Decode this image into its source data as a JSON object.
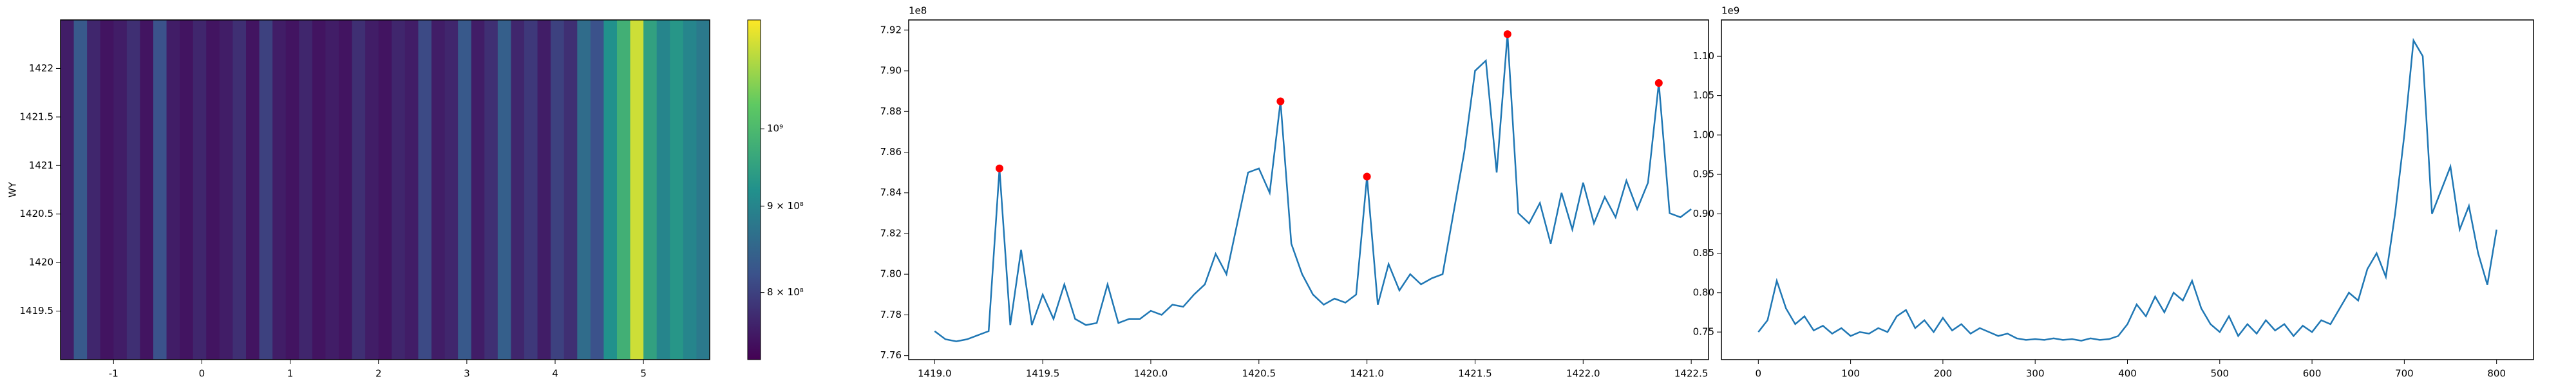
{
  "chart_data": [
    {
      "type": "heatmap",
      "ylabel": "WY",
      "colormap": "viridis",
      "xlim": [
        -1.6,
        5.75
      ],
      "ylim": [
        1419.0,
        1422.5
      ],
      "xticks": [
        -1,
        0,
        1,
        2,
        3,
        4,
        5
      ],
      "yticks": [
        1419.5,
        1420.0,
        1420.5,
        1421.0,
        1421.5,
        1422.0
      ],
      "x_edges": [
        -1.6,
        -1.45,
        -1.3,
        -1.15,
        -1.0,
        -0.85,
        -0.7,
        -0.55,
        -0.4,
        -0.25,
        -0.1,
        0.05,
        0.2,
        0.35,
        0.5,
        0.65,
        0.8,
        0.95,
        1.1,
        1.25,
        1.4,
        1.55,
        1.7,
        1.85,
        2.0,
        2.15,
        2.3,
        2.45,
        2.6,
        2.75,
        2.9,
        3.05,
        3.2,
        3.35,
        3.5,
        3.65,
        3.8,
        3.95,
        4.1,
        4.25,
        4.4,
        4.55,
        4.7,
        4.85,
        5.0,
        5.15,
        5.3,
        5.45,
        5.6,
        5.75
      ],
      "values": [
        760000000.0,
        830000000.0,
        770000000.0,
        750000000.0,
        760000000.0,
        780000000.0,
        750000000.0,
        820000000.0,
        760000000.0,
        750000000.0,
        770000000.0,
        750000000.0,
        760000000.0,
        780000000.0,
        750000000.0,
        800000000.0,
        760000000.0,
        750000000.0,
        770000000.0,
        750000000.0,
        760000000.0,
        750000000.0,
        780000000.0,
        760000000.0,
        750000000.0,
        770000000.0,
        760000000.0,
        810000000.0,
        760000000.0,
        770000000.0,
        830000000.0,
        760000000.0,
        780000000.0,
        840000000.0,
        770000000.0,
        790000000.0,
        760000000.0,
        800000000.0,
        780000000.0,
        860000000.0,
        820000000.0,
        920000000.0,
        980000000.0,
        1120000000.0,
        950000000.0,
        900000000.0,
        930000000.0,
        900000000.0,
        880000000.0
      ],
      "colorbar": {
        "log": true,
        "lim": [
          730000000.0,
          1160000000.0
        ],
        "ticks": [
          {
            "value": 800000000.0,
            "label": "8 × 10⁸"
          },
          {
            "value": 900000000.0,
            "label": "9 × 10⁸"
          },
          {
            "value": 1000000000.0,
            "label": "10⁹"
          }
        ]
      }
    },
    {
      "type": "line",
      "offset_label": "1e8",
      "xlim": [
        1418.88,
        1422.58
      ],
      "ylim": [
        7.758,
        7.925
      ],
      "xticks": [
        {
          "value": 1419.0,
          "label": "1419.0"
        },
        1419.5,
        {
          "value": 1420.0,
          "label": "1420.0"
        },
        1420.5,
        {
          "value": 1421.0,
          "label": "1421.0"
        },
        1421.5,
        {
          "value": 1422.0,
          "label": "1422.0"
        },
        1422.5
      ],
      "yticks": [
        7.76,
        7.78,
        {
          "value": 7.8,
          "label": "7.80"
        },
        7.82,
        7.84,
        7.86,
        7.88,
        {
          "value": 7.9,
          "label": "7.90"
        },
        7.92
      ],
      "series": [
        {
          "color": "#1f77b4",
          "x": [
            1419.0,
            1419.05,
            1419.1,
            1419.15,
            1419.2,
            1419.25,
            1419.3,
            1419.35,
            1419.4,
            1419.45,
            1419.5,
            1419.55,
            1419.6,
            1419.65,
            1419.7,
            1419.75,
            1419.8,
            1419.85,
            1419.9,
            1419.95,
            1420.0,
            1420.05,
            1420.1,
            1420.15,
            1420.2,
            1420.25,
            1420.3,
            1420.35,
            1420.4,
            1420.45,
            1420.5,
            1420.55,
            1420.6,
            1420.65,
            1420.7,
            1420.75,
            1420.8,
            1420.85,
            1420.9,
            1420.95,
            1421.0,
            1421.05,
            1421.1,
            1421.15,
            1421.2,
            1421.25,
            1421.3,
            1421.35,
            1421.4,
            1421.45,
            1421.5,
            1421.55,
            1421.6,
            1421.65,
            1421.7,
            1421.75,
            1421.8,
            1421.85,
            1421.9,
            1421.95,
            1422.0,
            1422.05,
            1422.1,
            1422.15,
            1422.2,
            1422.25,
            1422.3,
            1422.35,
            1422.4,
            1422.45,
            1422.5
          ],
          "values": [
            7.772,
            7.768,
            7.767,
            7.768,
            7.77,
            7.772,
            7.852,
            7.775,
            7.812,
            7.775,
            7.79,
            7.778,
            7.795,
            7.778,
            7.775,
            7.776,
            7.795,
            7.776,
            7.778,
            7.778,
            7.782,
            7.78,
            7.785,
            7.784,
            7.79,
            7.795,
            7.81,
            7.8,
            7.825,
            7.85,
            7.852,
            7.84,
            7.885,
            7.815,
            7.8,
            7.79,
            7.785,
            7.788,
            7.786,
            7.79,
            7.848,
            7.785,
            7.805,
            7.792,
            7.8,
            7.795,
            7.798,
            7.8,
            7.83,
            7.86,
            7.9,
            7.905,
            7.85,
            7.918,
            7.83,
            7.825,
            7.835,
            7.815,
            7.84,
            7.822,
            7.845,
            7.825,
            7.838,
            7.828,
            7.846,
            7.832,
            7.845,
            7.894,
            7.83,
            7.828,
            7.832
          ]
        }
      ],
      "markers": {
        "color": "#ff0000",
        "x": [
          1419.3,
          1420.6,
          1421.0,
          1421.65,
          1422.35
        ],
        "values": [
          7.852,
          7.885,
          7.848,
          7.918,
          7.894
        ]
      }
    },
    {
      "type": "line",
      "offset_label": "1e9",
      "xlim": [
        -40,
        840
      ],
      "ylim": [
        0.715,
        1.146
      ],
      "xticks": [
        0,
        100,
        200,
        300,
        400,
        500,
        600,
        700,
        800
      ],
      "yticks": [
        0.75,
        {
          "value": 0.8,
          "label": "0.80"
        },
        0.85,
        {
          "value": 0.9,
          "label": "0.90"
        },
        0.95,
        {
          "value": 1.0,
          "label": "1.00"
        },
        1.05,
        {
          "value": 1.1,
          "label": "1.10"
        }
      ],
      "series": [
        {
          "color": "#1f77b4",
          "x": [
            0,
            10,
            20,
            30,
            40,
            50,
            60,
            70,
            80,
            90,
            100,
            110,
            120,
            130,
            140,
            150,
            160,
            170,
            180,
            190,
            200,
            210,
            220,
            230,
            240,
            250,
            260,
            270,
            280,
            290,
            300,
            310,
            320,
            330,
            340,
            350,
            360,
            370,
            380,
            390,
            400,
            410,
            420,
            430,
            440,
            450,
            460,
            470,
            480,
            490,
            500,
            510,
            520,
            530,
            540,
            550,
            560,
            570,
            580,
            590,
            600,
            610,
            620,
            630,
            640,
            650,
            660,
            670,
            680,
            690,
            700,
            710,
            720,
            730,
            740,
            750,
            760,
            770,
            780,
            790,
            800
          ],
          "values": [
            0.75,
            0.765,
            0.815,
            0.78,
            0.76,
            0.77,
            0.752,
            0.758,
            0.748,
            0.755,
            0.745,
            0.75,
            0.748,
            0.755,
            0.75,
            0.77,
            0.778,
            0.755,
            0.765,
            0.75,
            0.768,
            0.752,
            0.76,
            0.748,
            0.755,
            0.75,
            0.745,
            0.748,
            0.742,
            0.74,
            0.741,
            0.74,
            0.742,
            0.74,
            0.741,
            0.739,
            0.742,
            0.74,
            0.741,
            0.745,
            0.76,
            0.785,
            0.77,
            0.795,
            0.775,
            0.8,
            0.79,
            0.815,
            0.78,
            0.76,
            0.75,
            0.77,
            0.745,
            0.76,
            0.748,
            0.765,
            0.752,
            0.76,
            0.745,
            0.758,
            0.75,
            0.765,
            0.76,
            0.78,
            0.8,
            0.79,
            0.83,
            0.85,
            0.82,
            0.9,
            1.0,
            1.12,
            1.1,
            0.9,
            0.93,
            0.96,
            0.88,
            0.91,
            0.85,
            0.81,
            0.88
          ]
        }
      ]
    }
  ]
}
